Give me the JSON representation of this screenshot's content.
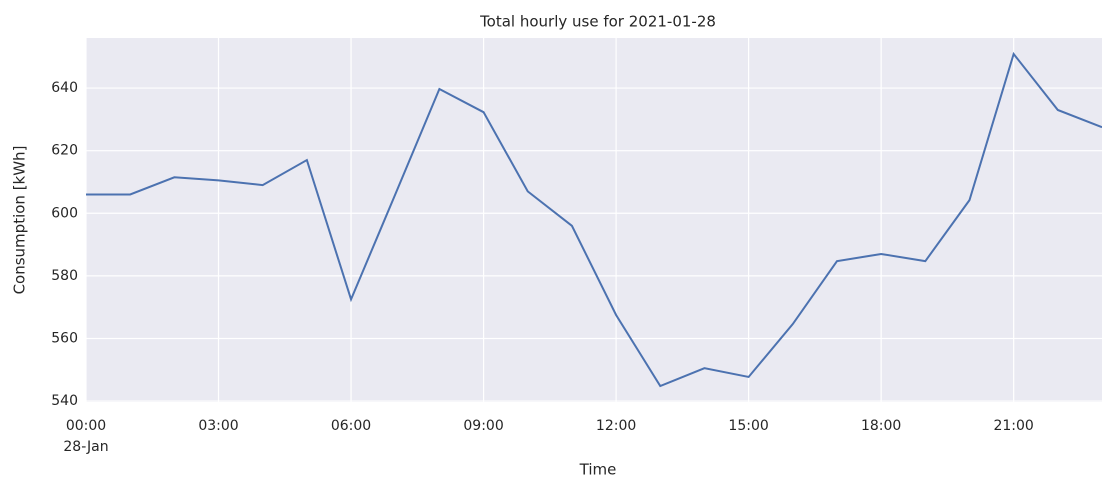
{
  "chart_data": {
    "type": "line",
    "title": "Total hourly use for 2021-01-28",
    "x_label": "Time",
    "y_label": "Consumption [kWh]",
    "x": [
      0,
      1,
      2,
      3,
      4,
      5,
      6,
      7,
      8,
      9,
      10,
      11,
      12,
      13,
      14,
      15,
      16,
      17,
      18,
      19,
      20,
      21,
      22,
      23
    ],
    "series": [
      {
        "name": "Consumption",
        "color": "#4c72b0",
        "values": [
          606,
          606,
          611.5,
          610.5,
          609,
          617,
          572.5,
          606,
          639.7,
          632.3,
          607,
          596,
          567.5,
          544.8,
          550.5,
          547.7,
          564.6,
          584.7,
          587,
          584.7,
          604.2,
          650.9,
          633,
          627.5
        ]
      }
    ],
    "xlim": [
      0,
      23
    ],
    "xticks": [
      {
        "value": 0,
        "label": "00:00"
      },
      {
        "value": 3,
        "label": "03:00"
      },
      {
        "value": 6,
        "label": "06:00"
      },
      {
        "value": 9,
        "label": "09:00"
      },
      {
        "value": 12,
        "label": "12:00"
      },
      {
        "value": 15,
        "label": "15:00"
      },
      {
        "value": 18,
        "label": "18:00"
      },
      {
        "value": 21,
        "label": "21:00"
      }
    ],
    "x_date_label": "28-Jan",
    "ylim": [
      539.7,
      656
    ],
    "yticks": [
      540,
      560,
      580,
      600,
      620,
      640
    ],
    "grid": true,
    "background": "#eaeaf2"
  }
}
